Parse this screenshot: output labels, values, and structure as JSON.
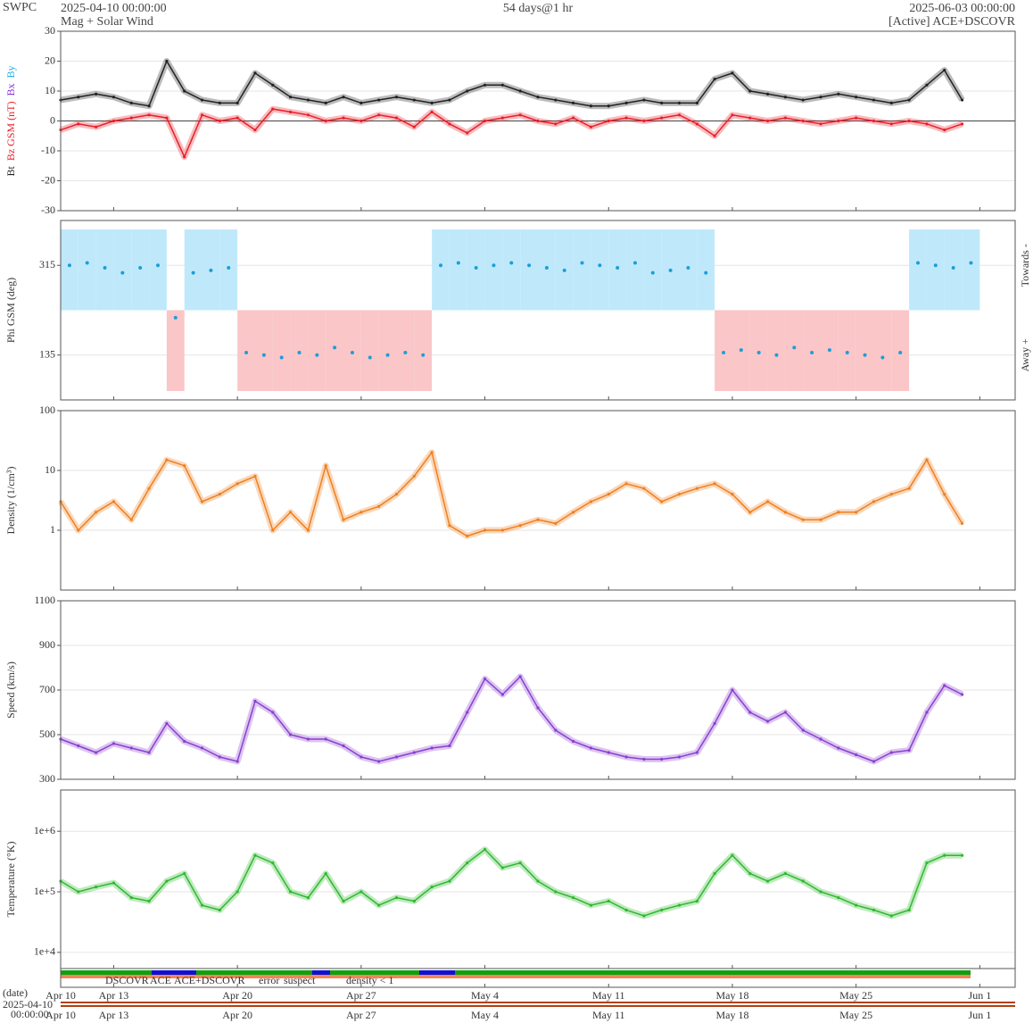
{
  "header": {
    "org": "SWPC",
    "start": "2025-04-10 00:00:00",
    "product": "Mag + Solar Wind",
    "span": "54 days@1 hr",
    "end": "2025-06-03 00:00:00",
    "source": "[Active] ACE+DSCOVR"
  },
  "chart_data": [
    {
      "type": "line",
      "ylim": [
        -30,
        30
      ],
      "yticks": [
        -30,
        -20,
        -10,
        0,
        10,
        20,
        30
      ],
      "grid": true,
      "log_y": false,
      "legend_extra": [
        {
          "name": "Bx",
          "color": "#8a2be2"
        },
        {
          "name": "By",
          "color": "#1cb0e8"
        }
      ],
      "series": [
        {
          "name": "Bt",
          "color": "#222222",
          "values": [
            7,
            8,
            9,
            8,
            6,
            5,
            20,
            10,
            7,
            6,
            6,
            16,
            12,
            8,
            7,
            6,
            8,
            6,
            7,
            8,
            7,
            6,
            7,
            10,
            12,
            12,
            10,
            8,
            7,
            6,
            5,
            5,
            6,
            7,
            6,
            6,
            6,
            14,
            16,
            10,
            9,
            8,
            7,
            8,
            9,
            8,
            7,
            6,
            7,
            12,
            17,
            7,
            null,
            null,
            null
          ]
        },
        {
          "name": "Bz GSM (nT)",
          "color": "#e8202a",
          "values": [
            -3,
            -1,
            -2,
            0,
            1,
            2,
            1,
            -12,
            2,
            0,
            1,
            -3,
            4,
            3,
            2,
            0,
            1,
            0,
            2,
            1,
            -2,
            3,
            -1,
            -4,
            0,
            1,
            2,
            0,
            -1,
            1,
            -2,
            0,
            1,
            0,
            1,
            2,
            -1,
            -5,
            2,
            1,
            0,
            1,
            0,
            -1,
            0,
            1,
            0,
            -1,
            0,
            -1,
            -3,
            -1,
            null,
            null,
            null
          ]
        }
      ]
    },
    {
      "type": "scatter",
      "ylim": [
        45,
        405
      ],
      "yticks": [
        135,
        315
      ],
      "grid": true,
      "log_y": false,
      "y_label": "Phi GSM (deg)",
      "right_labels": [
        "Towards -",
        "Away +"
      ],
      "color": "#1a9fd8",
      "values": [
        315,
        320,
        310,
        300,
        310,
        315,
        210,
        300,
        305,
        310,
        140,
        135,
        130,
        140,
        135,
        150,
        140,
        130,
        135,
        140,
        135,
        315,
        320,
        310,
        315,
        320,
        315,
        310,
        305,
        320,
        315,
        310,
        320,
        300,
        305,
        310,
        300,
        140,
        145,
        140,
        135,
        150,
        140,
        145,
        140,
        135,
        130,
        140,
        320,
        315,
        310,
        320,
        null,
        null,
        null
      ]
    },
    {
      "type": "line",
      "ylim": [
        0.1,
        100
      ],
      "yticks": [
        1,
        10,
        100
      ],
      "grid": true,
      "log_y": true,
      "y_label": "Density (1/cm³)",
      "color": "#f07f1e",
      "values": [
        3,
        1,
        2,
        3,
        1.5,
        5,
        15,
        12,
        3,
        4,
        6,
        8,
        1,
        2,
        1,
        12,
        1.5,
        2,
        2.5,
        4,
        8,
        20,
        1.2,
        0.8,
        1,
        1,
        1.2,
        1.5,
        1.3,
        2,
        3,
        4,
        6,
        5,
        3,
        4,
        5,
        6,
        4,
        2,
        3,
        2,
        1.5,
        1.5,
        2,
        2,
        3,
        4,
        5,
        15,
        4,
        1.3,
        null,
        null,
        null
      ]
    },
    {
      "type": "line",
      "ylim": [
        300,
        1100
      ],
      "yticks": [
        300,
        500,
        700,
        900,
        1100
      ],
      "grid": true,
      "log_y": false,
      "y_label": "Speed (km/s)",
      "color": "#8a3fd1",
      "values": [
        480,
        450,
        420,
        460,
        440,
        420,
        550,
        470,
        440,
        400,
        380,
        650,
        600,
        500,
        480,
        480,
        450,
        400,
        380,
        400,
        420,
        440,
        450,
        600,
        750,
        680,
        760,
        620,
        520,
        470,
        440,
        420,
        400,
        390,
        390,
        400,
        420,
        550,
        700,
        600,
        560,
        600,
        520,
        480,
        440,
        410,
        380,
        420,
        430,
        600,
        720,
        680,
        null,
        null,
        null
      ]
    },
    {
      "type": "line",
      "ylim": [
        5400,
        4800000
      ],
      "yticks": [
        {
          "value": 10000,
          "label": "1e+4"
        },
        {
          "value": 100000,
          "label": "1e+5"
        },
        {
          "value": 1000000,
          "label": "1e+6"
        }
      ],
      "grid": true,
      "log_y": true,
      "y_label": "Temperature (°K)",
      "color": "#2fb82f",
      "categories": [
        "Apr 10",
        null,
        null,
        "Apr 13",
        null,
        null,
        null,
        null,
        null,
        null,
        "Apr 20",
        null,
        null,
        null,
        null,
        null,
        null,
        "Apr 27",
        null,
        null,
        null,
        null,
        null,
        null,
        "May 4",
        null,
        null,
        null,
        null,
        null,
        null,
        "May 11",
        null,
        null,
        null,
        null,
        null,
        null,
        "May 18",
        null,
        null,
        null,
        null,
        null,
        null,
        "May 25",
        null,
        null,
        null,
        null,
        null,
        null,
        "Jun 1",
        null,
        null
      ],
      "values": [
        150000,
        100000,
        120000,
        140000,
        80000,
        70000,
        150000,
        200000,
        60000,
        50000,
        100000,
        400000,
        300000,
        100000,
        80000,
        200000,
        70000,
        100000,
        60000,
        80000,
        70000,
        120000,
        150000,
        300000,
        500000,
        250000,
        300000,
        150000,
        100000,
        80000,
        60000,
        70000,
        50000,
        40000,
        50000,
        60000,
        70000,
        200000,
        400000,
        200000,
        150000,
        200000,
        150000,
        100000,
        80000,
        60000,
        50000,
        40000,
        50000,
        300000,
        400000,
        400000,
        null,
        null,
        null
      ]
    }
  ],
  "footer": {
    "sources": [
      {
        "name": "DSCOVR",
        "color": "#1010d0"
      },
      {
        "name": "ACE",
        "color": "#10a010"
      },
      {
        "name": "ACE+DSCOVR",
        "color": "#e010c0"
      },
      {
        "name": "error",
        "color": "#d01010"
      },
      {
        "name": "suspect",
        "color": "#e0a000"
      },
      {
        "name": "density < 1",
        "color": "#f05010"
      }
    ],
    "axis_label": "(date)",
    "start_date": "2025-04-10",
    "start_time": "00:00:00"
  }
}
